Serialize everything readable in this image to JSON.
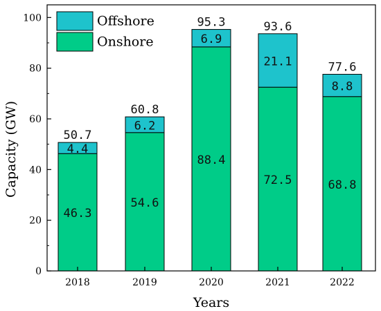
{
  "chart_data": {
    "type": "bar",
    "stacked": true,
    "categories": [
      "2018",
      "2019",
      "2020",
      "2021",
      "2022"
    ],
    "series": [
      {
        "name": "Onshore",
        "values": [
          46.3,
          54.6,
          88.4,
          72.5,
          68.8
        ],
        "value_labels": [
          "46.3",
          "54.6",
          "88.4",
          "72.5",
          "68.8"
        ],
        "color": "#00CC88"
      },
      {
        "name": "Offshore",
        "values": [
          4.4,
          6.2,
          6.9,
          21.1,
          8.8
        ],
        "value_labels": [
          "4.4",
          "6.2",
          "6.9",
          "21.1",
          "8.8"
        ],
        "color": "#1EC3CC"
      }
    ],
    "totals": [
      50.7,
      60.8,
      95.3,
      93.6,
      77.6
    ],
    "total_labels": [
      "50.7",
      "60.8",
      "95.3",
      "93.6",
      "77.6"
    ],
    "title": "",
    "xlabel": "Years",
    "ylabel": "Capacity (GW)",
    "ylim": [
      0,
      105
    ],
    "yticks": [
      0,
      20,
      40,
      60,
      80,
      100
    ],
    "ytick_labels": [
      "0",
      "20",
      "40",
      "60",
      "80",
      "100"
    ],
    "grid": false,
    "legend_placement": "top-left",
    "legend": [
      {
        "name": "Offshore",
        "color": "#1EC3CC"
      },
      {
        "name": "Onshore",
        "color": "#00CC88"
      }
    ]
  }
}
